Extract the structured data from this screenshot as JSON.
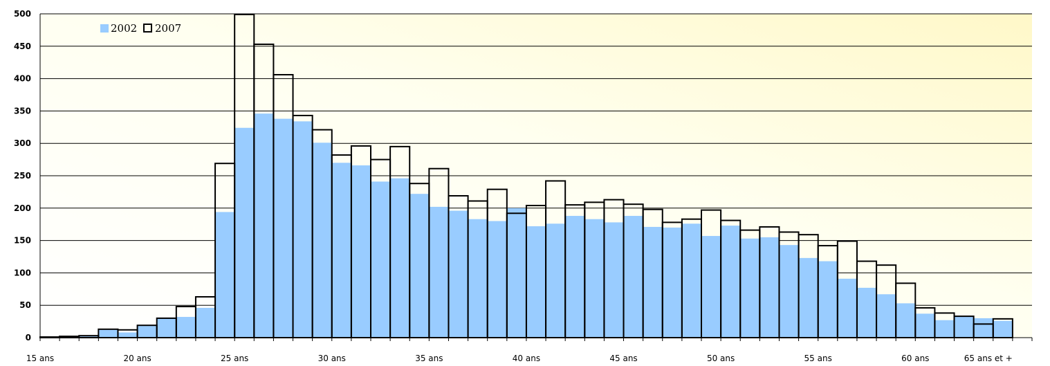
{
  "chart_data": {
    "type": "bar",
    "title": "",
    "xlabel": "",
    "ylabel": "",
    "ylim": [
      0,
      500
    ],
    "y_ticks": [
      0,
      50,
      100,
      150,
      200,
      250,
      300,
      350,
      400,
      450,
      500
    ],
    "x_ticks": [
      "15 ans",
      "20 ans",
      "25 ans",
      "30 ans",
      "35 ans",
      "40 ans",
      "45 ans",
      "50 ans",
      "55 ans",
      "60 ans",
      "65 ans et +"
    ],
    "categories": [
      "15",
      "16",
      "17",
      "18",
      "19",
      "20",
      "21",
      "22",
      "23",
      "24",
      "25",
      "26",
      "27",
      "28",
      "29",
      "30",
      "31",
      "32",
      "33",
      "34",
      "35",
      "36",
      "37",
      "38",
      "39",
      "40",
      "41",
      "42",
      "43",
      "44",
      "45",
      "46",
      "47",
      "48",
      "49",
      "50",
      "51",
      "52",
      "53",
      "54",
      "55",
      "56",
      "57",
      "58",
      "59",
      "60",
      "61",
      "62",
      "63",
      "64",
      "65 et +"
    ],
    "grid": "horizontal",
    "legend_position": "top-left",
    "colors": {
      "series_2002": "#99ccff",
      "series_2007_outline": "#000000",
      "background_start": "#ffffff",
      "background_end": "#fffbd0"
    },
    "series": [
      {
        "name": "2002",
        "values": [
          0,
          1,
          2,
          12,
          8,
          18,
          30,
          32,
          46,
          194,
          324,
          346,
          338,
          334,
          301,
          270,
          266,
          241,
          246,
          222,
          202,
          196,
          183,
          180,
          200,
          172,
          176,
          188,
          183,
          178,
          188,
          171,
          170,
          176,
          157,
          173,
          153,
          155,
          143,
          123,
          118,
          91,
          77,
          67,
          53,
          37,
          27,
          32,
          30,
          26,
          0
        ]
      },
      {
        "name": "2007",
        "values": [
          1,
          2,
          3,
          13,
          12,
          19,
          30,
          48,
          63,
          269,
          499,
          453,
          406,
          343,
          321,
          282,
          296,
          275,
          295,
          238,
          261,
          219,
          211,
          229,
          192,
          204,
          242,
          205,
          209,
          213,
          206,
          198,
          178,
          183,
          197,
          181,
          166,
          171,
          163,
          159,
          142,
          149,
          118,
          112,
          84,
          46,
          38,
          33,
          21,
          29,
          0
        ]
      }
    ]
  }
}
